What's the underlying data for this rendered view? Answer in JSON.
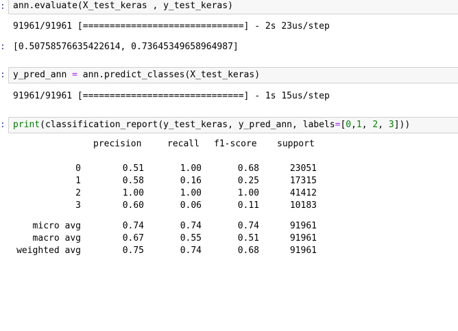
{
  "cells": [
    {
      "prompt": ":",
      "code": "ann.evaluate(X_test_keras , y_test_keras)"
    },
    {
      "prompt": ":",
      "code_pre": "y_pred_ann ",
      "code_op": "=",
      "code_post": " ann.predict_classes(X_test_keras)"
    },
    {
      "prompt": ":",
      "code_builtin": "print",
      "code_a": "(classification_report(y_test_keras, y_pred_ann, labels",
      "code_eq": "=",
      "code_b": "[",
      "n0": "0",
      "c1": ",",
      "n1": "1",
      "c2": ", ",
      "n2": "2",
      "c3": ", ",
      "n3": "3",
      "code_c": "]))"
    }
  ],
  "outputs": {
    "eval_progress": "91961/91961 [==============================] - 2s 23us/step",
    "eval_prompt": ":",
    "eval_result": "[0.50758576635422614, 0.73645349658964987]",
    "predict_progress": "91961/91961 [==============================] - 1s 15us/step"
  },
  "report": {
    "headers": [
      "precision",
      "recall",
      "f1-score",
      "support"
    ],
    "class_rows": [
      {
        "label": "0",
        "precision": "0.51",
        "recall": "1.00",
        "f1": "0.68",
        "support": "23051"
      },
      {
        "label": "1",
        "precision": "0.58",
        "recall": "0.16",
        "f1": "0.25",
        "support": "17315"
      },
      {
        "label": "2",
        "precision": "1.00",
        "recall": "1.00",
        "f1": "1.00",
        "support": "41412"
      },
      {
        "label": "3",
        "precision": "0.60",
        "recall": "0.06",
        "f1": "0.11",
        "support": "10183"
      }
    ],
    "avg_rows": [
      {
        "label": "micro avg",
        "precision": "0.74",
        "recall": "0.74",
        "f1": "0.74",
        "support": "91961"
      },
      {
        "label": "macro avg",
        "precision": "0.67",
        "recall": "0.55",
        "f1": "0.51",
        "support": "91961"
      },
      {
        "label": "weighted avg",
        "precision": "0.75",
        "recall": "0.74",
        "f1": "0.68",
        "support": "91961"
      }
    ]
  }
}
